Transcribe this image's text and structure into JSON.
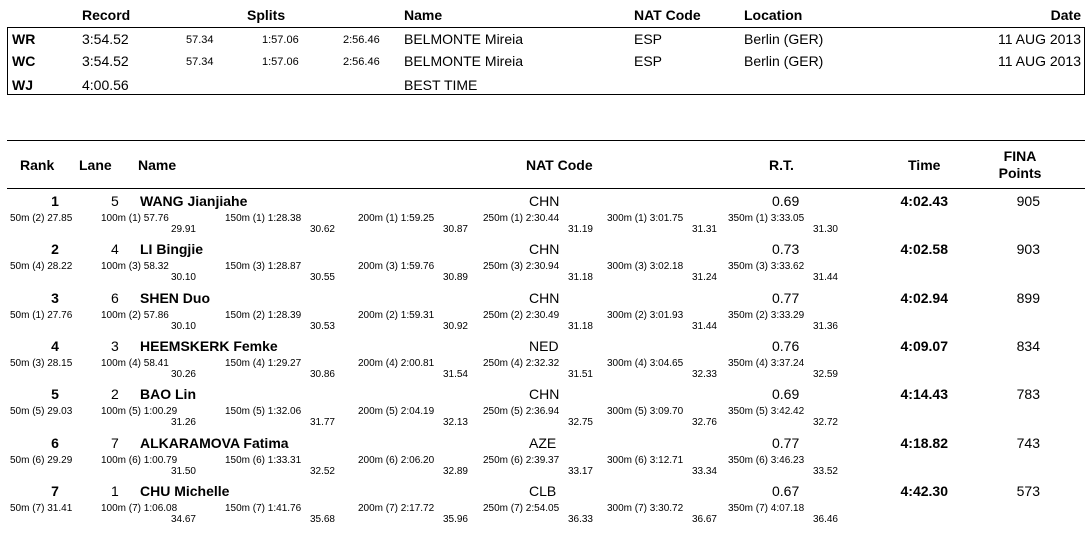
{
  "records_header": {
    "record": "Record",
    "splits": "Splits",
    "name": "Name",
    "nat_code": "NAT Code",
    "location": "Location",
    "date": "Date"
  },
  "records": [
    {
      "type": "WR",
      "time": "3:54.52",
      "split1": "57.34",
      "split2": "1:57.06",
      "split3": "2:56.46",
      "name": "BELMONTE Mireia",
      "nat": "ESP",
      "location": "Berlin (GER)",
      "date": "11 AUG 2013"
    },
    {
      "type": "WC",
      "time": "3:54.52",
      "split1": "57.34",
      "split2": "1:57.06",
      "split3": "2:56.46",
      "name": "BELMONTE Mireia",
      "nat": "ESP",
      "location": "Berlin (GER)",
      "date": "11 AUG 2013"
    },
    {
      "type": "WJ",
      "time": "4:00.56",
      "split1": "",
      "split2": "",
      "split3": "",
      "name": "BEST TIME",
      "nat": "",
      "location": "",
      "date": ""
    }
  ],
  "results_header": {
    "rank": "Rank",
    "lane": "Lane",
    "name": "Name",
    "nat_code": "NAT Code",
    "rt": "R.T.",
    "time": "Time",
    "fina_line1": "FINA",
    "fina_line2": "Points"
  },
  "results": [
    {
      "rank": "1",
      "lane": "5",
      "name": "WANG Jianjiahe",
      "nat": "CHN",
      "rt": "0.69",
      "time": "4:02.43",
      "points": "905",
      "splits": [
        {
          "label": "50m (2) 27.85",
          "sub": ""
        },
        {
          "label": "100m (1) 57.76",
          "sub": "29.91"
        },
        {
          "label": "150m (1) 1:28.38",
          "sub": "30.62"
        },
        {
          "label": "200m (1) 1:59.25",
          "sub": "30.87"
        },
        {
          "label": "250m (1) 2:30.44",
          "sub": "31.19"
        },
        {
          "label": "300m (1) 3:01.75",
          "sub": "31.31"
        },
        {
          "label": "350m (1) 3:33.05",
          "sub": "31.30"
        }
      ]
    },
    {
      "rank": "2",
      "lane": "4",
      "name": "LI Bingjie",
      "nat": "CHN",
      "rt": "0.73",
      "time": "4:02.58",
      "points": "903",
      "splits": [
        {
          "label": "50m (4) 28.22",
          "sub": ""
        },
        {
          "label": "100m (3) 58.32",
          "sub": "30.10"
        },
        {
          "label": "150m (3) 1:28.87",
          "sub": "30.55"
        },
        {
          "label": "200m (3) 1:59.76",
          "sub": "30.89"
        },
        {
          "label": "250m (3) 2:30.94",
          "sub": "31.18"
        },
        {
          "label": "300m (3) 3:02.18",
          "sub": "31.24"
        },
        {
          "label": "350m (3) 3:33.62",
          "sub": "31.44"
        }
      ]
    },
    {
      "rank": "3",
      "lane": "6",
      "name": "SHEN Duo",
      "nat": "CHN",
      "rt": "0.77",
      "time": "4:02.94",
      "points": "899",
      "splits": [
        {
          "label": "50m (1) 27.76",
          "sub": ""
        },
        {
          "label": "100m (2) 57.86",
          "sub": "30.10"
        },
        {
          "label": "150m (2) 1:28.39",
          "sub": "30.53"
        },
        {
          "label": "200m (2) 1:59.31",
          "sub": "30.92"
        },
        {
          "label": "250m (2) 2:30.49",
          "sub": "31.18"
        },
        {
          "label": "300m (2) 3:01.93",
          "sub": "31.44"
        },
        {
          "label": "350m (2) 3:33.29",
          "sub": "31.36"
        }
      ]
    },
    {
      "rank": "4",
      "lane": "3",
      "name": "HEEMSKERK Femke",
      "nat": "NED",
      "rt": "0.76",
      "time": "4:09.07",
      "points": "834",
      "splits": [
        {
          "label": "50m (3) 28.15",
          "sub": ""
        },
        {
          "label": "100m (4) 58.41",
          "sub": "30.26"
        },
        {
          "label": "150m (4) 1:29.27",
          "sub": "30.86"
        },
        {
          "label": "200m (4) 2:00.81",
          "sub": "31.54"
        },
        {
          "label": "250m (4) 2:32.32",
          "sub": "31.51"
        },
        {
          "label": "300m (4) 3:04.65",
          "sub": "32.33"
        },
        {
          "label": "350m (4) 3:37.24",
          "sub": "32.59"
        }
      ]
    },
    {
      "rank": "5",
      "lane": "2",
      "name": "BAO Lin",
      "nat": "CHN",
      "rt": "0.69",
      "time": "4:14.43",
      "points": "783",
      "splits": [
        {
          "label": "50m (5) 29.03",
          "sub": ""
        },
        {
          "label": "100m (5) 1:00.29",
          "sub": "31.26"
        },
        {
          "label": "150m (5) 1:32.06",
          "sub": "31.77"
        },
        {
          "label": "200m (5) 2:04.19",
          "sub": "32.13"
        },
        {
          "label": "250m (5) 2:36.94",
          "sub": "32.75"
        },
        {
          "label": "300m (5) 3:09.70",
          "sub": "32.76"
        },
        {
          "label": "350m (5) 3:42.42",
          "sub": "32.72"
        }
      ]
    },
    {
      "rank": "6",
      "lane": "7",
      "name": "ALKARAMOVA Fatima",
      "nat": "AZE",
      "rt": "0.77",
      "time": "4:18.82",
      "points": "743",
      "splits": [
        {
          "label": "50m (6) 29.29",
          "sub": ""
        },
        {
          "label": "100m (6) 1:00.79",
          "sub": "31.50"
        },
        {
          "label": "150m (6) 1:33.31",
          "sub": "32.52"
        },
        {
          "label": "200m (6) 2:06.20",
          "sub": "32.89"
        },
        {
          "label": "250m (6) 2:39.37",
          "sub": "33.17"
        },
        {
          "label": "300m (6) 3:12.71",
          "sub": "33.34"
        },
        {
          "label": "350m (6) 3:46.23",
          "sub": "33.52"
        }
      ]
    },
    {
      "rank": "7",
      "lane": "1",
      "name": "CHU Michelle",
      "nat": "CLB",
      "rt": "0.67",
      "time": "4:42.30",
      "points": "573",
      "splits": [
        {
          "label": "50m (7) 31.41",
          "sub": ""
        },
        {
          "label": "100m (7) 1:06.08",
          "sub": "34.67"
        },
        {
          "label": "150m (7) 1:41.76",
          "sub": "35.68"
        },
        {
          "label": "200m (7) 2:17.72",
          "sub": "35.96"
        },
        {
          "label": "250m (7) 2:54.05",
          "sub": "36.33"
        },
        {
          "label": "300m (7) 3:30.72",
          "sub": "36.67"
        },
        {
          "label": "350m (7) 4:07.18",
          "sub": "36.46"
        }
      ]
    }
  ]
}
